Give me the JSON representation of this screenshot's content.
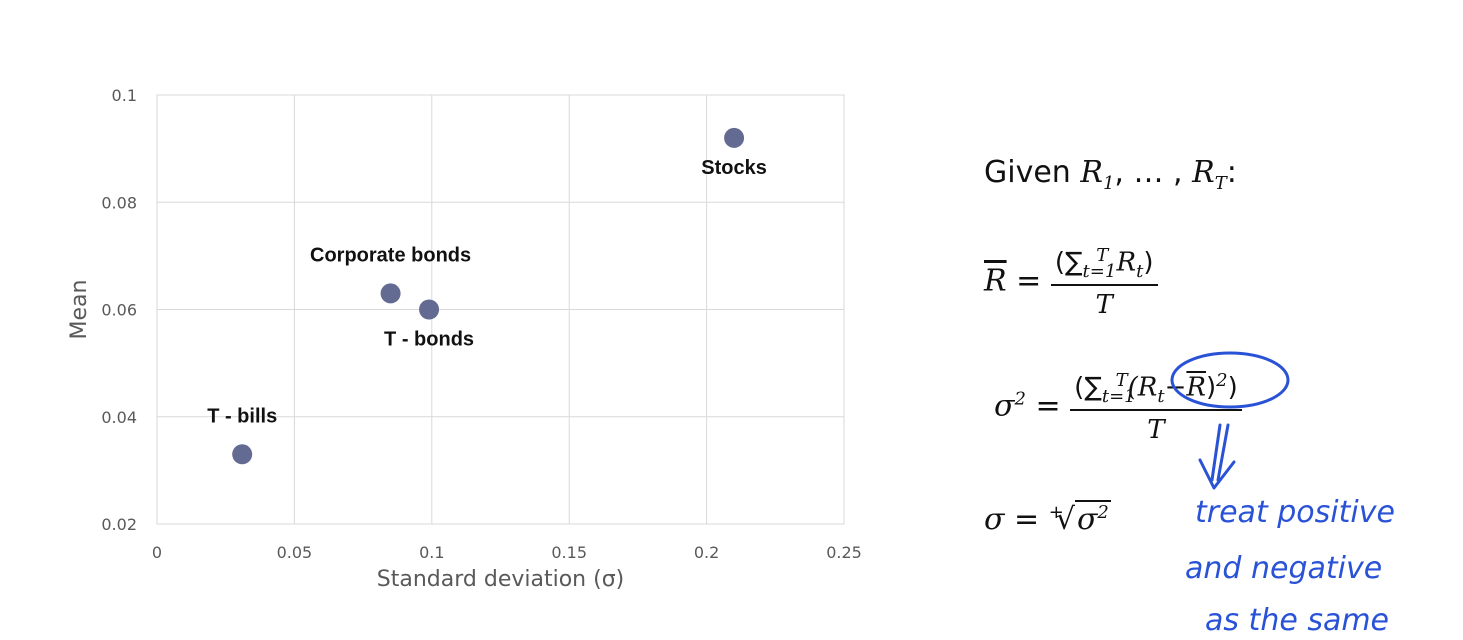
{
  "chart_data": {
    "type": "scatter",
    "xlabel": "Standard deviation (σ)",
    "ylabel": "Mean",
    "xlim": [
      0,
      0.25
    ],
    "ylim": [
      0.02,
      0.1
    ],
    "x_ticks": [
      "0",
      "0.05",
      "0.1",
      "0.15",
      "0.2",
      "0.25"
    ],
    "y_ticks": [
      "0.02",
      "0.04",
      "0.06",
      "0.08",
      "0.1"
    ],
    "grid": true,
    "marker_color": "#636b92",
    "points": [
      {
        "label": "T - bills",
        "x": 0.031,
        "y": 0.033,
        "label_pos": "above"
      },
      {
        "label": "Corporate bonds",
        "x": 0.085,
        "y": 0.063,
        "label_pos": "above"
      },
      {
        "label": "T - bonds",
        "x": 0.099,
        "y": 0.06,
        "label_pos": "below"
      },
      {
        "label": "Stocks",
        "x": 0.21,
        "y": 0.092,
        "label_pos": "below"
      }
    ]
  },
  "formulas": {
    "given_prefix": "Given",
    "given_seq": "R",
    "given_sub_1": "1",
    "given_sep": ", … , ",
    "given_sub_T": "T",
    "given_colon": ":",
    "mean_lhs": "R",
    "mean_num": "(∑",
    "mean_num_sub": "t=1",
    "mean_num_sup": "T",
    "mean_num_tail": " R",
    "mean_num_tail_sub": "t",
    "mean_num_close": ")",
    "denominator": "T",
    "var_lhs": "σ",
    "var_sup": "2",
    "var_num": "(∑",
    "var_num_sub": "t=1",
    "var_num_sup": "T",
    "var_inner": "(R",
    "var_inner_sub": "t",
    "var_minus": "−",
    "var_rbar": "R",
    "var_close": ")",
    "var_close_sup": "2",
    "var_end": ")",
    "std_lhs": "σ",
    "std_plus": "+",
    "std_radicand": "σ",
    "std_radicand_sup": "2",
    "equals": "="
  },
  "annotation": {
    "color": "#2a52d6",
    "lines": [
      "treat positive",
      "and negative",
      "as the same"
    ]
  }
}
